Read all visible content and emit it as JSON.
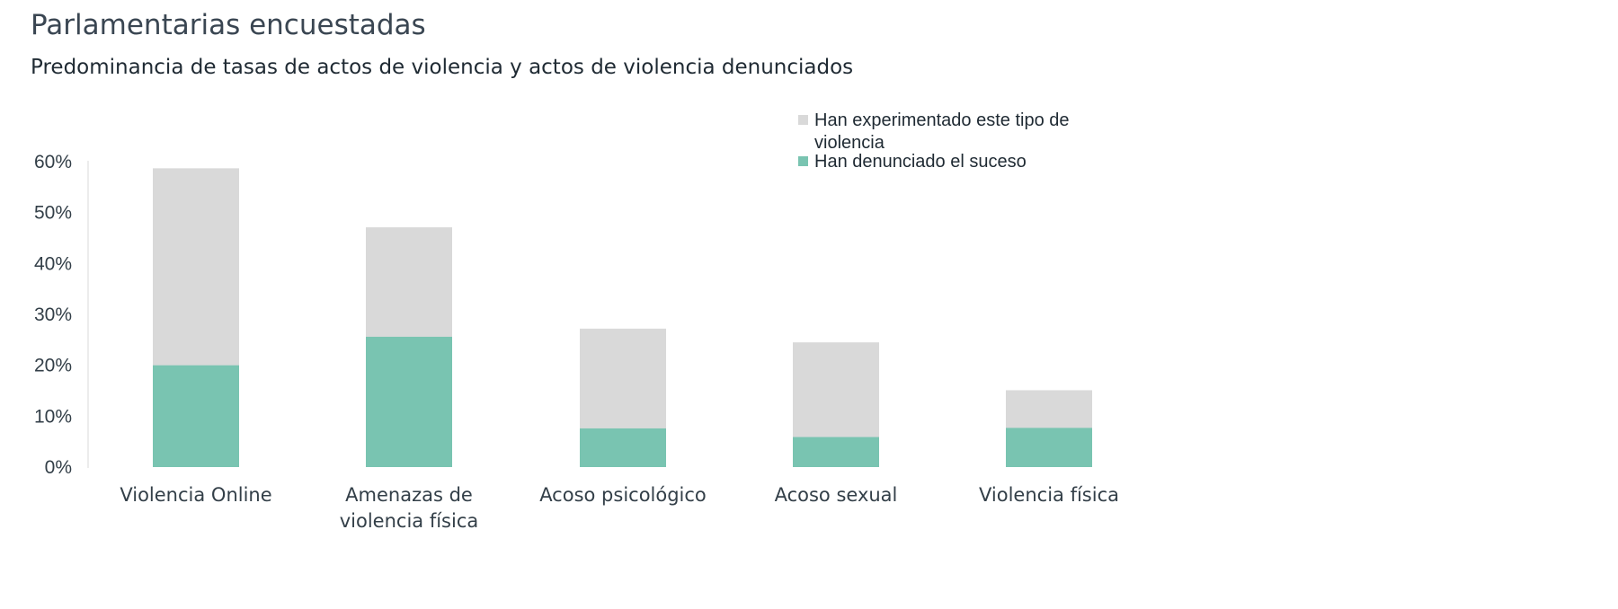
{
  "chart_data": {
    "type": "bar",
    "stacked": false,
    "overlapping_bars": true,
    "title": "Parlamentarias encuestadas",
    "subtitle": "Predominancia de tasas de actos de violencia y actos de violencia denunciados",
    "categories": [
      [
        "Violencia Online"
      ],
      [
        "Amenazas de",
        "violencia física"
      ],
      [
        "Acoso psicológico"
      ],
      [
        "Acoso sexual"
      ],
      [
        "Violencia física"
      ]
    ],
    "series": [
      {
        "name": "Han experimentado este tipo de violencia",
        "name_lines": [
          "Han experimentado este tipo de",
          "violencia"
        ],
        "color": "#d9d9d9",
        "values": [
          58.7,
          47.1,
          27.2,
          24.5,
          15.1
        ]
      },
      {
        "name": "Han denunciado el suceso",
        "name_lines": [
          "Han denunciado el suceso"
        ],
        "color": "#79c4b1",
        "values": [
          20.0,
          25.6,
          7.6,
          5.9,
          7.7
        ]
      }
    ],
    "ylim": [
      0,
      60
    ],
    "yticks": [
      0,
      10,
      20,
      30,
      40,
      50,
      60
    ],
    "ytick_format": "percent",
    "xlabel": "",
    "ylabel": "",
    "legend_position": "top-right",
    "grid": false
  }
}
